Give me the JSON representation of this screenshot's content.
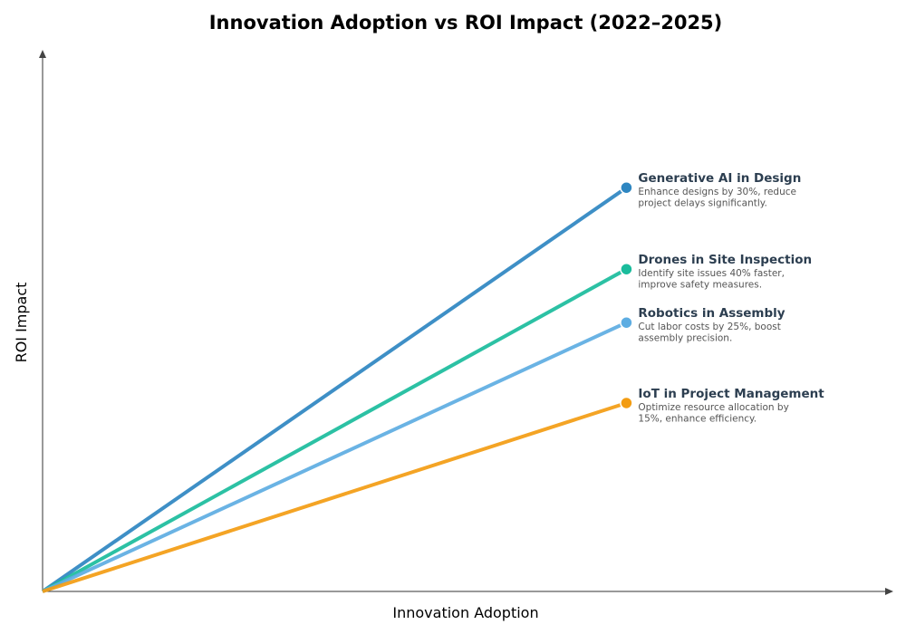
{
  "chart_data": {
    "type": "line",
    "title": "Innovation Adoption vs ROI Impact (2022–2025)",
    "xlabel": "Innovation Adoption",
    "ylabel": "ROI Impact",
    "xlim": [
      0,
      1
    ],
    "ylim": [
      0,
      1
    ],
    "grid": false,
    "series": [
      {
        "name": "Generative AI in Design",
        "description_lines": [
          "Enhance designs by 30%, reduce",
          "project delays significantly."
        ],
        "color": "#2e86c1",
        "x": [
          0,
          0.687
        ],
        "y": [
          0,
          0.748
        ]
      },
      {
        "name": "Drones in Site Inspection",
        "description_lines": [
          "Identify site issues 40% faster,",
          "improve safety measures."
        ],
        "color": "#1abc9c",
        "x": [
          0,
          0.687
        ],
        "y": [
          0,
          0.597
        ]
      },
      {
        "name": "Robotics in Assembly",
        "description_lines": [
          "Cut labor costs by 25%, boost",
          "assembly precision."
        ],
        "color": "#5dade2",
        "x": [
          0,
          0.687
        ],
        "y": [
          0,
          0.498
        ]
      },
      {
        "name": "IoT in Project Management",
        "description_lines": [
          "Optimize resource allocation by",
          "15%, enhance efficiency."
        ],
        "color": "#f39c12",
        "x": [
          0,
          0.687
        ],
        "y": [
          0,
          0.349
        ]
      }
    ]
  }
}
